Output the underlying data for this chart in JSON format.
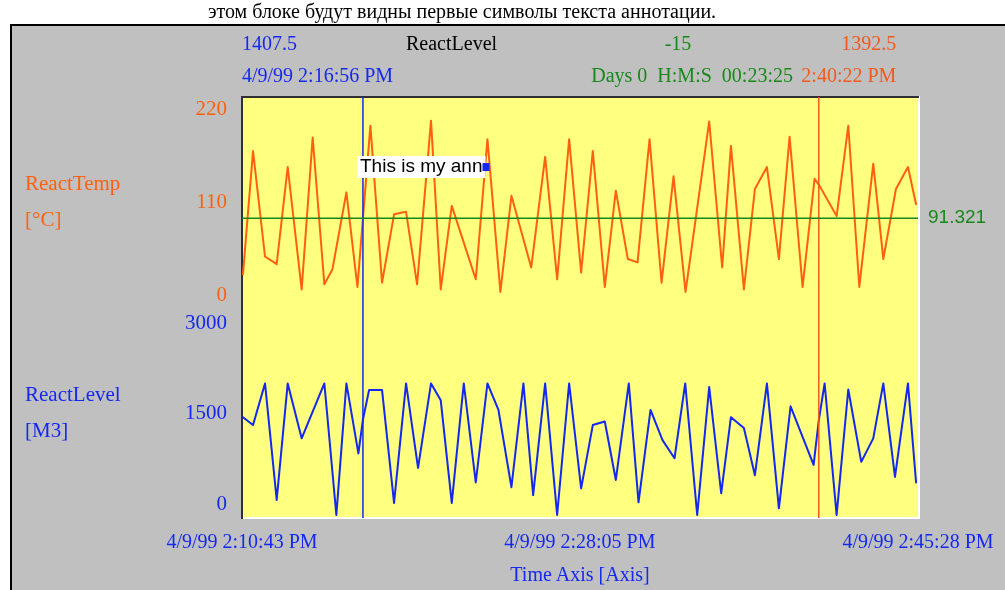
{
  "chart_data": [
    {
      "type": "line",
      "ylabel": "ReactTemp [°C]",
      "tick_labels": "y",
      "xlim": [
        "1999-04-09T14:10:43",
        "1999-04-09T14:45:28"
      ],
      "ylim": [
        -15,
        235
      ],
      "yticks": [
        0,
        110,
        220
      ],
      "series": [
        {
          "color": "#ff6010",
          "x": [
            "1999-04-09T14:10:46",
            "1999-04-09T14:11:17",
            "1999-04-09T14:11:54",
            "1999-04-09T14:12:30",
            "1999-04-09T14:13:04",
            "1999-04-09T14:13:47",
            "1999-04-09T14:14:21",
            "1999-04-09T14:14:57",
            "1999-04-09T14:15:22",
            "1999-04-09T14:16:05",
            "1999-04-09T14:16:39",
            "1999-04-09T14:17:19",
            "1999-04-09T14:17:55",
            "1999-04-09T14:18:32",
            "1999-04-09T14:19:09",
            "1999-04-09T14:19:43",
            "1999-04-09T14:20:26",
            "1999-04-09T14:20:56",
            "1999-04-09T14:21:30",
            "1999-04-09T14:22:44",
            "1999-04-09T14:23:20",
            "1999-04-09T14:24:00",
            "1999-04-09T14:24:34",
            "1999-04-09T14:25:35",
            "1999-04-09T14:26:18",
            "1999-04-09T14:26:55",
            "1999-04-09T14:27:32",
            "1999-04-09T14:28:09",
            "1999-04-09T14:28:45",
            "1999-04-09T14:29:22",
            "1999-04-09T14:29:56",
            "1999-04-09T14:30:33",
            "1999-04-09T14:31:03",
            "1999-04-09T14:31:40",
            "1999-04-09T14:32:17",
            "1999-04-09T14:32:54",
            "1999-04-09T14:33:31",
            "1999-04-09T14:34:44",
            "1999-04-09T14:35:24",
            "1999-04-09T14:35:51",
            "1999-04-09T14:36:31",
            "1999-04-09T14:37:05",
            "1999-04-09T14:37:42",
            "1999-04-09T14:38:19",
            "1999-04-09T14:38:52",
            "1999-04-09T14:39:32",
            "1999-04-09T14:40:09",
            "1999-04-09T14:40:24",
            "1999-04-09T14:41:17",
            "1999-04-09T14:41:53",
            "1999-04-09T14:42:27",
            "1999-04-09T14:43:10",
            "1999-04-09T14:43:41",
            "1999-04-09T14:44:20",
            "1999-04-09T14:44:57",
            "1999-04-09T14:45:22"
          ],
          "values": [
            25,
            171,
            46,
            37,
            152,
            7,
            187,
            13,
            31,
            122,
            10,
            201,
            15,
            96,
            99,
            13,
            207,
            7,
            106,
            19,
            185,
            4,
            118,
            33,
            164,
            19,
            185,
            27,
            171,
            10,
            124,
            43,
            39,
            185,
            15,
            141,
            4,
            206,
            33,
            177,
            7,
            126,
            152,
            43,
            188,
            10,
            138,
            130,
            94,
            201,
            10,
            156,
            43,
            126,
            152,
            108
          ]
        }
      ],
      "ref_lines": [
        {
          "axis": "x",
          "value": "1999-04-09T14:16:56",
          "label": "4/9/99 2:16:56 PM",
          "color": "#1428f0"
        },
        {
          "axis": "x",
          "value": "1999-04-09T14:40:22",
          "label": "2:40:22 PM",
          "color": "#f05a1e"
        },
        {
          "axis": "y",
          "value": 91.321,
          "label": "91.321",
          "color": "#188818"
        }
      ],
      "annotations": [
        "этом блоке будут видны первые символы текста аннотации.",
        "1407.5",
        "ReactLevel",
        "-15",
        "1392.5",
        "Days 0  H:M:S  00:23:25",
        {
          "text": "This is my ann",
          "x": "1999-04-09T14:23:14",
          "y": 152
        }
      ]
    },
    {
      "type": "line",
      "xlabel": "Time Axis [Axis]",
      "ylabel": "ReactLevel [M3]",
      "xlim": [
        "1999-04-09T14:10:43",
        "1999-04-09T14:45:28"
      ],
      "xticks": [
        {
          "value": "1999-04-09T14:10:43",
          "label": "4/9/99 2:10:43 PM"
        },
        {
          "value": "1999-04-09T14:28:05",
          "label": "4/9/99 2:28:05 PM"
        },
        {
          "value": "1999-04-09T14:45:28",
          "label": "4/9/99 2:45:28 PM"
        }
      ],
      "ylim": [
        -230,
        3250
      ],
      "yticks": [
        0,
        1500,
        3000
      ],
      "series": [
        {
          "color": "#1428f0",
          "x": [
            "1999-04-09T14:10:46",
            "1999-04-09T14:11:17",
            "1999-04-09T14:11:54",
            "1999-04-09T14:12:30",
            "1999-04-09T14:13:04",
            "1999-04-09T14:13:47",
            "1999-04-09T14:14:57",
            "1999-04-09T14:15:34",
            "1999-04-09T14:16:05",
            "1999-04-09T14:16:42",
            "1999-04-09T14:16:56",
            "1999-04-09T14:17:15",
            "1999-04-09T14:17:55",
            "1999-04-09T14:18:32",
            "1999-04-09T14:19:09",
            "1999-04-09T14:19:46",
            "1999-04-09T14:20:26",
            "1999-04-09T14:20:56",
            "1999-04-09T14:21:30",
            "1999-04-09T14:22:07",
            "1999-04-09T14:22:44",
            "1999-04-09T14:23:20",
            "1999-04-09T14:23:54",
            "1999-04-09T14:24:34",
            "1999-04-09T14:25:11",
            "1999-04-09T14:25:41",
            "1999-04-09T14:26:18",
            "1999-04-09T14:26:55",
            "1999-04-09T14:27:32",
            "1999-04-09T14:28:09",
            "1999-04-09T14:28:45",
            "1999-04-09T14:29:22",
            "1999-04-09T14:29:56",
            "1999-04-09T14:30:36",
            "1999-04-09T14:31:06",
            "1999-04-09T14:31:43",
            "1999-04-09T14:32:20",
            "1999-04-09T14:32:57",
            "1999-04-09T14:33:30",
            "1999-04-09T14:34:07",
            "1999-04-09T14:34:44",
            "1999-04-09T14:35:21",
            "1999-04-09T14:35:51",
            "1999-04-09T14:36:31",
            "1999-04-09T14:37:05",
            "1999-04-09T14:37:42",
            "1999-04-09T14:38:19",
            "1999-04-09T14:38:55",
            "1999-04-09T14:40:06",
            "1999-04-09T14:40:22",
            "1999-04-09T14:40:40",
            "1999-04-09T14:41:17",
            "1999-04-09T14:41:53",
            "1999-04-09T14:42:33",
            "1999-04-09T14:43:10",
            "1999-04-09T14:43:41",
            "1999-04-09T14:44:17",
            "1999-04-09T14:44:57",
            "1999-04-09T14:45:22"
          ],
          "values": [
            1440,
            1310,
            2000,
            70,
            2000,
            1090,
            2000,
            -180,
            2000,
            840,
            1400,
            1890,
            1890,
            20,
            2000,
            600,
            2000,
            1720,
            20,
            2000,
            360,
            2000,
            1560,
            280,
            2000,
            150,
            2000,
            -180,
            2000,
            260,
            1310,
            1370,
            400,
            2000,
            30,
            1560,
            1060,
            760,
            2000,
            -180,
            1940,
            180,
            1440,
            1260,
            480,
            2000,
            -70,
            1620,
            650,
            1390,
            2000,
            -180,
            1900,
            700,
            1090,
            2000,
            450,
            2000,
            360
          ]
        }
      ],
      "ref_lines": [
        {
          "axis": "x",
          "value": "1999-04-09T14:16:56",
          "color": "#1428f0"
        },
        {
          "axis": "x",
          "value": "1999-04-09T14:40:22",
          "color": "#f05a1e"
        }
      ]
    }
  ]
}
